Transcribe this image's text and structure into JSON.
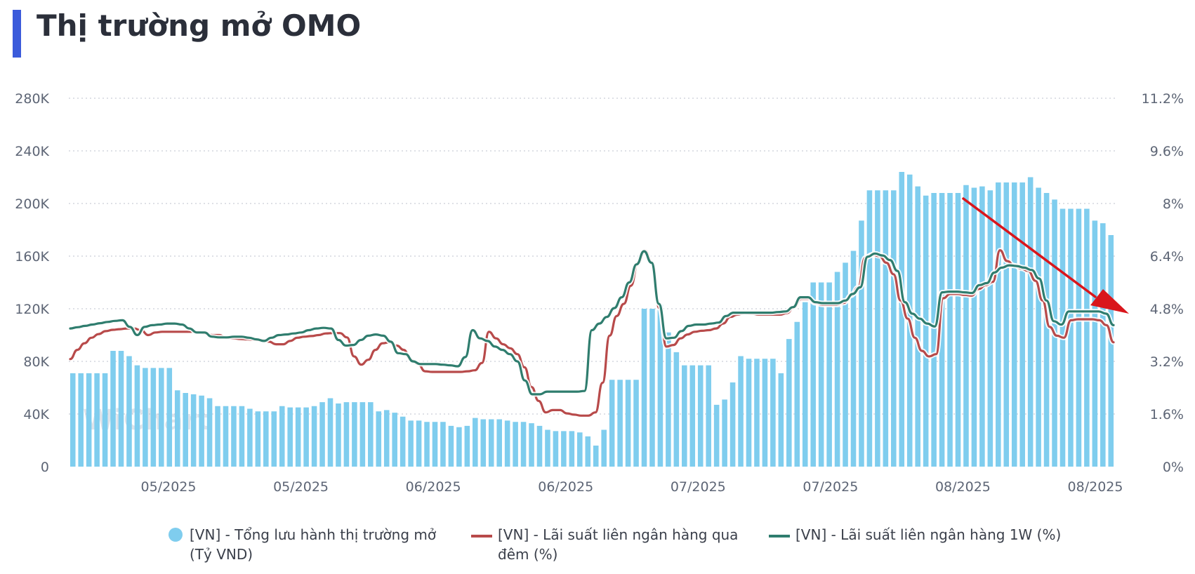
{
  "header": {
    "title": "Thị trường mở OMO"
  },
  "watermark": "WiChart",
  "colors": {
    "bar": "#7fcdee",
    "overnight": "#b84a4a",
    "oneweek": "#2f7d6e",
    "accent": "#3b5bdb",
    "arrow": "#d9161c"
  },
  "chart_data": {
    "type": "bar+line",
    "title": "Thị trường mở OMO",
    "x_tick_labels": [
      "05/2025",
      "05/2025",
      "06/2025",
      "06/2025",
      "07/2025",
      "07/2025",
      "08/2025",
      "08/2025"
    ],
    "y_left": {
      "ticks": [
        "0",
        "40K",
        "80K",
        "120K",
        "160K",
        "200K",
        "240K",
        "280K"
      ],
      "min": 0,
      "max": 280000
    },
    "y_right": {
      "ticks": [
        "0%",
        "1.6%",
        "3.2%",
        "4.8%",
        "6.4%",
        "8%",
        "9.6%",
        "11.2%"
      ],
      "min": 0,
      "max": 11.2
    },
    "grid": "horizontal dotted",
    "legend_position": "bottom",
    "series": [
      {
        "name": "[VN] - Tổng lưu hành thị trường mở (Tỷ VND)",
        "kind": "bar",
        "axis": "left",
        "values": [
          71000,
          71000,
          71000,
          71000,
          71000,
          88000,
          88000,
          84000,
          77000,
          75000,
          75000,
          75000,
          75000,
          58000,
          56000,
          55000,
          54000,
          52000,
          46000,
          46000,
          46000,
          46000,
          44000,
          42000,
          42000,
          42000,
          46000,
          45000,
          45000,
          45000,
          46000,
          49000,
          52000,
          48000,
          49000,
          49000,
          49000,
          49000,
          42000,
          43000,
          41000,
          38000,
          35000,
          35000,
          34000,
          34000,
          34000,
          31000,
          30000,
          31000,
          37000,
          36000,
          36000,
          36000,
          35000,
          34000,
          34000,
          33000,
          31000,
          28000,
          27000,
          27000,
          27000,
          26000,
          23000,
          16000,
          28000,
          66000,
          66000,
          66000,
          66000,
          120000,
          120000,
          123000,
          102000,
          87000,
          77000,
          77000,
          77000,
          77000,
          47000,
          51000,
          64000,
          84000,
          82000,
          82000,
          82000,
          82000,
          71000,
          97000,
          110000,
          125000,
          140000,
          140000,
          140000,
          148000,
          155000,
          164000,
          187000,
          210000,
          210000,
          210000,
          210000,
          224000,
          222000,
          213000,
          206000,
          208000,
          208000,
          208000,
          208000,
          214000,
          212000,
          213000,
          210000,
          216000,
          216000,
          216000,
          216000,
          220000,
          212000,
          208000,
          203000,
          196000,
          196000,
          196000,
          196000,
          187000,
          185000,
          176000
        ]
      },
      {
        "name": "[VN] - Lãi suất liên ngân hàng qua đêm (%)",
        "kind": "line",
        "axis": "right",
        "values": [
          3.27,
          3.55,
          3.75,
          3.92,
          4.03,
          4.12,
          4.16,
          4.18,
          4.2,
          4.2,
          4.14,
          4.0,
          4.08,
          4.1,
          4.1,
          4.1,
          4.1,
          4.1,
          4.1,
          4.05,
          4.0,
          4.0,
          3.92,
          3.9,
          3.88,
          3.87,
          3.85,
          3.85,
          3.8,
          3.72,
          3.72,
          3.82,
          3.92,
          3.95,
          3.97,
          4.0,
          4.05,
          4.06,
          4.06,
          3.93,
          3.35,
          3.1,
          3.25,
          3.55,
          3.75,
          3.78,
          3.68,
          3.55,
          3.25,
          3.12,
          2.9,
          2.88,
          2.88,
          2.88,
          2.88,
          2.88,
          2.9,
          2.93,
          3.15,
          4.1,
          3.9,
          3.72,
          3.6,
          3.42,
          3.02,
          2.42,
          2.0,
          1.65,
          1.72,
          1.72,
          1.62,
          1.58,
          1.55,
          1.55,
          1.65,
          2.55,
          3.98,
          4.58,
          4.95,
          5.5,
          6.2,
          6.57,
          6.2,
          4.82,
          3.65,
          3.7,
          3.9,
          4.02,
          4.1,
          4.13,
          4.15,
          4.2,
          4.35,
          4.55,
          4.62,
          4.67,
          4.65,
          4.62,
          4.62,
          4.62,
          4.62,
          4.67,
          4.85,
          5.1,
          5.1,
          4.97,
          4.92,
          4.92,
          4.92,
          4.98,
          5.2,
          5.45,
          6.35,
          6.45,
          6.4,
          6.2,
          5.85,
          5.05,
          4.5,
          3.92,
          3.52,
          3.35,
          3.42,
          5.12,
          5.25,
          5.25,
          5.22,
          5.2,
          5.4,
          5.52,
          5.62,
          6.58,
          6.25,
          6.12,
          6.02,
          5.95,
          5.65,
          5.05,
          4.25,
          3.98,
          3.92,
          4.45,
          4.48,
          4.48,
          4.48,
          4.45,
          4.3,
          3.78
        ]
      },
      {
        "name": "[VN] - Lãi suất liên ngân hàng 1W (%)",
        "kind": "line",
        "axis": "right",
        "values": [
          4.2,
          4.24,
          4.28,
          4.32,
          4.36,
          4.4,
          4.43,
          4.45,
          4.25,
          4.0,
          4.25,
          4.3,
          4.32,
          4.35,
          4.35,
          4.32,
          4.2,
          4.08,
          4.08,
          3.95,
          3.93,
          3.93,
          3.95,
          3.95,
          3.92,
          3.87,
          3.82,
          3.92,
          4.0,
          4.02,
          4.05,
          4.08,
          4.15,
          4.2,
          4.22,
          4.2,
          3.85,
          3.68,
          3.7,
          3.85,
          3.98,
          4.02,
          3.98,
          3.8,
          3.45,
          3.42,
          3.2,
          3.12,
          3.12,
          3.12,
          3.1,
          3.08,
          3.05,
          3.33,
          4.15,
          3.9,
          3.82,
          3.65,
          3.55,
          3.42,
          3.2,
          2.62,
          2.2,
          2.2,
          2.28,
          2.28,
          2.28,
          2.28,
          2.28,
          2.3,
          4.15,
          4.35,
          4.55,
          4.82,
          5.15,
          5.6,
          6.15,
          6.55,
          6.2,
          4.95,
          3.9,
          3.92,
          4.12,
          4.28,
          4.32,
          4.32,
          4.35,
          4.38,
          4.58,
          4.68,
          4.68,
          4.68,
          4.68,
          4.68,
          4.68,
          4.7,
          4.72,
          4.85,
          5.15,
          5.15,
          5.0,
          4.97,
          4.97,
          4.97,
          5.05,
          5.25,
          5.45,
          6.38,
          6.48,
          6.42,
          6.28,
          5.95,
          5.0,
          4.65,
          4.5,
          4.35,
          4.26,
          5.3,
          5.32,
          5.32,
          5.3,
          5.28,
          5.52,
          5.58,
          5.9,
          6.05,
          6.12,
          6.1,
          6.05,
          5.98,
          5.72,
          5.05,
          4.42,
          4.32,
          4.72,
          4.72,
          4.72,
          4.72,
          4.72,
          4.65,
          4.3
        ]
      }
    ],
    "annotation": {
      "type": "arrow",
      "direction": "down-right",
      "color": "#d9161c"
    }
  },
  "legend": [
    {
      "label": "[VN] - Tổng lưu hành thị trường mở (Tỷ VND)"
    },
    {
      "label": "[VN] - Lãi suất liên ngân hàng qua đêm (%)"
    },
    {
      "label": "[VN] - Lãi suất liên ngân hàng 1W (%)"
    }
  ]
}
